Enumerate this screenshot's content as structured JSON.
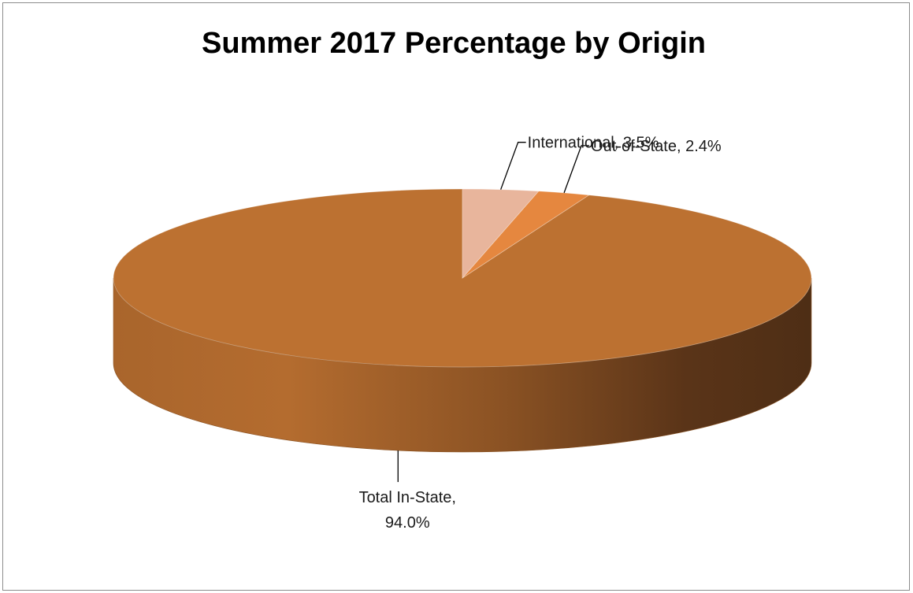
{
  "chart_data": {
    "type": "pie",
    "style": "3d",
    "title": "Summer 2017 Percentage by Origin",
    "slices": [
      {
        "name": "Total In-State",
        "value": 94.0,
        "label_lines": [
          "Total In-State,",
          "94.0%"
        ],
        "color": "#BC7131"
      },
      {
        "name": "Out-of-State",
        "value": 2.4,
        "label_lines": [
          "Out-of-State, 2.4%"
        ],
        "color": "#E5873F"
      },
      {
        "name": "International",
        "value": 3.5,
        "label_lines": [
          "International, 3.5%"
        ],
        "color": "#E8B59C"
      }
    ],
    "legend": "none",
    "data_labels": "outside with leader lines"
  }
}
